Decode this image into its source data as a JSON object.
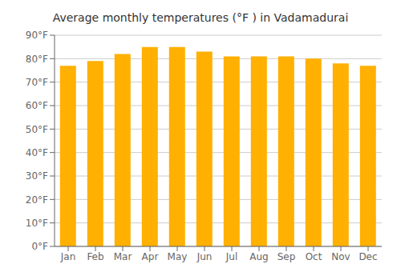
{
  "chart_data": {
    "type": "bar",
    "title": "Average monthly temperatures (°F ) in Vadamadurai",
    "categories": [
      "Jan",
      "Feb",
      "Mar",
      "Apr",
      "May",
      "Jun",
      "Jul",
      "Aug",
      "Sep",
      "Oct",
      "Nov",
      "Dec"
    ],
    "values": [
      77,
      79,
      82,
      85,
      85,
      83,
      81,
      81,
      81,
      80,
      78,
      77
    ],
    "color": "#FFB000",
    "ylim": [
      0,
      90
    ],
    "yticks": [
      {
        "value": 0,
        "label": "0°F"
      },
      {
        "value": 10,
        "label": "10°F"
      },
      {
        "value": 20,
        "label": "20°F"
      },
      {
        "value": 30,
        "label": "30°F"
      },
      {
        "value": 40,
        "label": "40°F"
      },
      {
        "value": 50,
        "label": "50°F"
      },
      {
        "value": 60,
        "label": "60°F"
      },
      {
        "value": 70,
        "label": "70°F"
      },
      {
        "value": 80,
        "label": "80°F"
      },
      {
        "value": 90,
        "label": "90°F"
      }
    ],
    "grid": true
  }
}
